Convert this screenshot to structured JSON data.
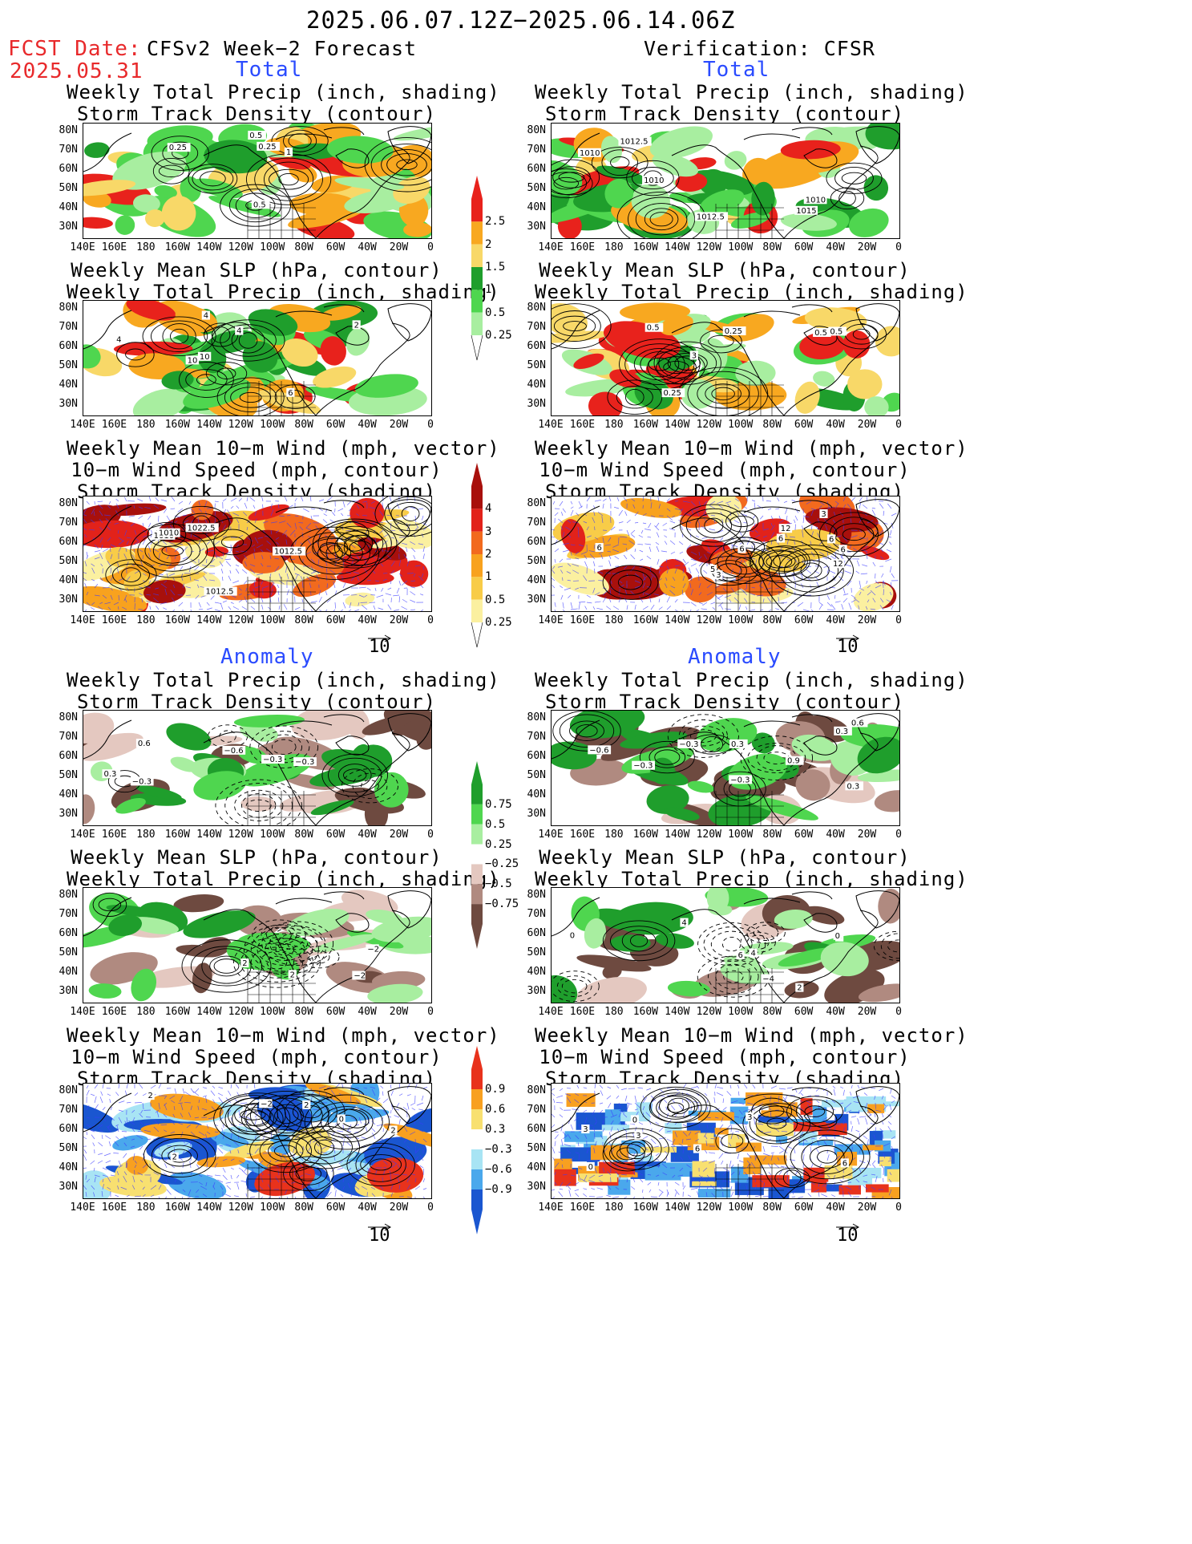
{
  "header": {
    "period": "2025.06.07.12Z−2025.06.14.06Z",
    "fcst_label": "FCST Date:",
    "fcst_date": "2025.05.31",
    "left_title": "CFSv2 Week−2 Forecast",
    "right_title": "Verification: CFSR",
    "total_label": "Total",
    "anomaly_label": "Anomaly"
  },
  "panel_titles": {
    "precip_track": [
      "Weekly Total Precip (inch, shading)",
      "Storm Track Density (contour)"
    ],
    "slp_precip": [
      "Weekly Mean SLP (hPa, contour)",
      "Weekly Total Precip (inch, shading)"
    ],
    "wind_track": [
      "Weekly Mean 10−m Wind (mph, vector)",
      "10−m Wind Speed (mph, contour)",
      "Storm Track Density (shading)"
    ]
  },
  "axes": {
    "lat_ticks": [
      "80N",
      "70N",
      "60N",
      "50N",
      "40N",
      "30N"
    ],
    "lon_ticks": [
      "140E",
      "160E",
      "180",
      "160W",
      "140W",
      "120W",
      "100W",
      "80W",
      "60W",
      "40W",
      "20W",
      "0"
    ]
  },
  "vector_ref": "10",
  "colorbars": {
    "precip_total": {
      "labels": [
        "2.5",
        "2",
        "1.5",
        "1",
        "0.5",
        "0.25"
      ],
      "colors": [
        "#e8221c",
        "#f8a820",
        "#f8d868",
        "#1f9e2c",
        "#4fd64f",
        "#a8eea0"
      ]
    },
    "track_total": {
      "labels": [
        "4",
        "3",
        "2",
        "1",
        "0.5",
        "0.25"
      ],
      "colors": [
        "#a8100c",
        "#e2221a",
        "#f26a1e",
        "#f8a21e",
        "#f8cc48",
        "#fbf0a0"
      ]
    },
    "precip_anom": {
      "labels": [
        "0.75",
        "0.5",
        "0.25",
        "−0.25",
        "−0.5",
        "−0.75"
      ],
      "colors": [
        "#1f9e2c",
        "#4fd64f",
        "#a8eea0",
        "#e4c8c0",
        "#b08a80",
        "#6e4a40"
      ]
    },
    "track_anom": {
      "labels": [
        "0.9",
        "0.6",
        "0.3",
        "−0.3",
        "−0.6",
        "−0.9"
      ],
      "colors": [
        "#e8321c",
        "#f8a020",
        "#f8e070",
        "#a8e4f4",
        "#4aa8ec",
        "#1a56d0"
      ]
    }
  },
  "map_labels": {
    "p1": [
      "0.25",
      "0.5",
      "0.25",
      "0.5",
      "1"
    ],
    "p2": [
      "1010",
      "1012.5",
      "1015",
      "1012.5",
      "1010",
      "1010"
    ],
    "p3": [
      "4",
      "4",
      "10",
      "2",
      "4",
      "10",
      "6"
    ],
    "p4": [
      "0.25",
      "0.5",
      "0.5",
      "0.25",
      "0.5",
      "3"
    ],
    "p5": [
      "1012.5",
      "1010",
      "1012.5",
      "1010",
      "1022.5"
    ],
    "p6": [
      "3",
      "6",
      "12",
      "6",
      "12",
      "6",
      "3",
      "5",
      "6",
      "6"
    ],
    "p7": [
      "−0.3",
      "0.3",
      "−0.6",
      "−0.3",
      "0.6",
      "−0.3"
    ],
    "p8": [
      "−0.3",
      "0.3",
      "0.6",
      "−0.3",
      "0.3",
      "0.9",
      "−0.6",
      "−0.3",
      "0.3"
    ],
    "p9": [
      "2",
      "−2",
      "2",
      "−2"
    ],
    "p10": [
      "4",
      "2",
      "0",
      "6",
      "4",
      "0",
      "−4",
      "4"
    ],
    "p11": [
      "2",
      "2",
      "−2",
      "2",
      "0",
      "2"
    ],
    "p12": [
      "6",
      "3",
      "0",
      "6",
      "0",
      "3",
      "3"
    ]
  }
}
